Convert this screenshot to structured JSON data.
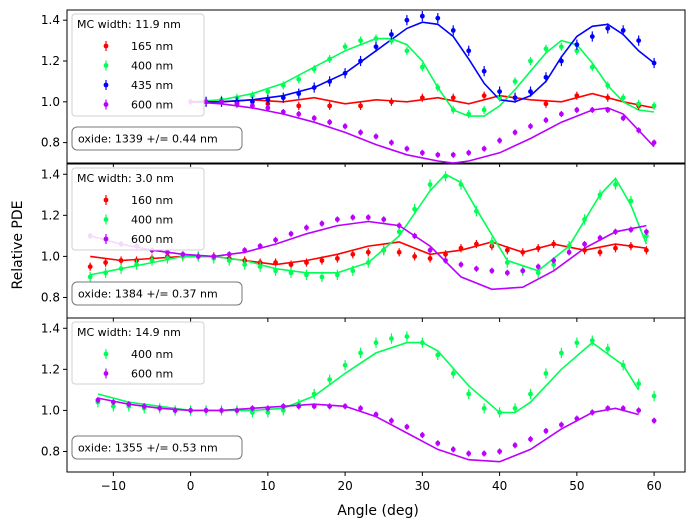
{
  "figure": {
    "ylabel": "Relative PDE",
    "xlabel": "Angle (deg)",
    "x_ticks": [
      -10,
      0,
      10,
      20,
      30,
      40,
      50,
      60
    ],
    "y_ticks": [
      0.8,
      1.0,
      1.2,
      1.4
    ]
  },
  "chart_data": [
    {
      "type": "scatter",
      "title": "",
      "xlim": [
        -16,
        64
      ],
      "ylim": [
        0.7,
        1.45
      ],
      "legend_title": "MC width:  11.9 nm",
      "annotation": "oxide: 1339 +/= 0.44 nm",
      "series": [
        {
          "name": "165 nm",
          "color": "#ff0000",
          "x": [
            2,
            6,
            10,
            14,
            18,
            22,
            26,
            30,
            34,
            38,
            42,
            46,
            50,
            54,
            58
          ],
          "y": [
            1.0,
            0.99,
            0.99,
            0.98,
            0.98,
            0.98,
            1.0,
            1.02,
            1.02,
            1.03,
            1.02,
            0.99,
            1.03,
            1.02,
            0.98
          ],
          "err": 0.02,
          "model_x": [
            0,
            4,
            8,
            12,
            16,
            20,
            24,
            28,
            32,
            36,
            40,
            44,
            48,
            52,
            56,
            60
          ],
          "model_y": [
            1.0,
            1.0,
            1.01,
            1.0,
            1.02,
            0.99,
            1.01,
            1.0,
            1.02,
            0.99,
            1.03,
            1.01,
            1.0,
            1.04,
            1.0,
            0.97
          ]
        },
        {
          "name": "400 nm",
          "color": "#00ff55",
          "x": [
            2,
            4,
            6,
            8,
            10,
            12,
            14,
            16,
            18,
            20,
            22,
            24,
            26,
            28,
            30,
            32,
            34,
            36,
            38,
            40,
            42,
            44,
            46,
            48,
            50,
            52,
            54,
            56,
            58,
            60
          ],
          "y": [
            1.0,
            1.01,
            1.02,
            1.03,
            1.05,
            1.08,
            1.11,
            1.16,
            1.21,
            1.27,
            1.3,
            1.31,
            1.3,
            1.25,
            1.17,
            1.07,
            0.96,
            0.94,
            0.96,
            1.02,
            1.1,
            1.2,
            1.26,
            1.27,
            1.25,
            1.17,
            1.08,
            1.02,
            0.99,
            0.98
          ],
          "err": 0.02,
          "model_x": [
            0,
            4,
            8,
            12,
            16,
            20,
            24,
            26,
            28,
            30,
            32,
            34,
            36,
            38,
            40,
            42,
            44,
            46,
            48,
            50,
            52,
            54,
            56,
            58,
            60
          ],
          "model_y": [
            1.0,
            1.01,
            1.04,
            1.09,
            1.17,
            1.25,
            1.31,
            1.31,
            1.28,
            1.2,
            1.07,
            0.96,
            0.93,
            0.93,
            0.98,
            1.06,
            1.15,
            1.24,
            1.3,
            1.28,
            1.19,
            1.08,
            1.0,
            0.96,
            0.95
          ]
        },
        {
          "name": "435 nm",
          "color": "#0000ff",
          "x": [
            2,
            4,
            6,
            8,
            10,
            12,
            14,
            16,
            18,
            20,
            22,
            24,
            26,
            28,
            30,
            32,
            34,
            36,
            38,
            40,
            42,
            44,
            46,
            48,
            50,
            52,
            54,
            56,
            58,
            60
          ],
          "y": [
            1.0,
            1.0,
            1.0,
            1.0,
            1.01,
            1.02,
            1.04,
            1.07,
            1.1,
            1.14,
            1.2,
            1.27,
            1.33,
            1.4,
            1.42,
            1.41,
            1.35,
            1.25,
            1.15,
            1.05,
            1.02,
            1.05,
            1.12,
            1.2,
            1.28,
            1.32,
            1.36,
            1.35,
            1.3,
            1.19
          ],
          "err": 0.025,
          "model_x": [
            0,
            4,
            8,
            12,
            16,
            20,
            24,
            28,
            30,
            32,
            34,
            36,
            38,
            40,
            42,
            44,
            46,
            48,
            50,
            52,
            54,
            56,
            58,
            60
          ],
          "model_y": [
            1.0,
            1.0,
            1.01,
            1.03,
            1.07,
            1.14,
            1.25,
            1.36,
            1.39,
            1.38,
            1.32,
            1.21,
            1.09,
            1.01,
            1.0,
            1.03,
            1.1,
            1.22,
            1.32,
            1.37,
            1.38,
            1.33,
            1.25,
            1.19
          ]
        },
        {
          "name": "600 nm",
          "color": "#bb00ff",
          "x": [
            0,
            2,
            4,
            6,
            8,
            10,
            12,
            14,
            16,
            18,
            20,
            22,
            24,
            26,
            28,
            30,
            32,
            34,
            36,
            38,
            40,
            42,
            44,
            46,
            48,
            50,
            52,
            54,
            56,
            58,
            60
          ],
          "y": [
            1.0,
            1.0,
            1.0,
            0.99,
            0.98,
            0.97,
            0.95,
            0.94,
            0.92,
            0.9,
            0.88,
            0.85,
            0.83,
            0.8,
            0.77,
            0.75,
            0.74,
            0.74,
            0.75,
            0.77,
            0.81,
            0.85,
            0.88,
            0.91,
            0.94,
            0.96,
            0.96,
            0.96,
            0.92,
            0.86,
            0.8
          ],
          "err": 0.015,
          "model_x": [
            0,
            4,
            8,
            12,
            16,
            20,
            24,
            28,
            32,
            34,
            36,
            40,
            44,
            48,
            52,
            54,
            56,
            60
          ],
          "model_y": [
            1.0,
            0.99,
            0.97,
            0.94,
            0.9,
            0.85,
            0.79,
            0.74,
            0.71,
            0.7,
            0.71,
            0.75,
            0.82,
            0.9,
            0.96,
            0.97,
            0.94,
            0.78
          ]
        }
      ]
    },
    {
      "type": "scatter",
      "title": "",
      "xlim": [
        -16,
        64
      ],
      "ylim": [
        0.7,
        1.45
      ],
      "legend_title": "MC width:  3.0 nm",
      "annotation": "oxide: 1384 +/= 0.37 nm",
      "series": [
        {
          "name": "160 nm",
          "color": "#ff0000",
          "x": [
            -13,
            -11,
            -9,
            -7,
            -5,
            -3,
            -1,
            1,
            3,
            5,
            7,
            9,
            11,
            13,
            15,
            17,
            19,
            21,
            23,
            25,
            27,
            29,
            31,
            33,
            35,
            37,
            39,
            41,
            43,
            45,
            47,
            49,
            51,
            53,
            55,
            57,
            59
          ],
          "y": [
            0.95,
            0.97,
            0.98,
            0.98,
            0.99,
            1.0,
            1.0,
            1.0,
            1.0,
            0.99,
            0.98,
            0.97,
            0.97,
            0.96,
            0.97,
            0.98,
            0.99,
            1.01,
            1.02,
            1.03,
            1.02,
            1.0,
            0.99,
            1.01,
            1.04,
            1.06,
            1.05,
            1.03,
            1.02,
            1.04,
            1.06,
            1.05,
            1.03,
            1.02,
            1.04,
            1.05,
            1.03
          ],
          "err": 0.02,
          "model_x": [
            -13,
            -9,
            -5,
            -1,
            3,
            7,
            11,
            15,
            19,
            23,
            27,
            31,
            35,
            39,
            43,
            47,
            51,
            55,
            59
          ],
          "model_y": [
            1.0,
            0.98,
            0.99,
            1.0,
            1.0,
            0.98,
            0.96,
            0.98,
            1.01,
            1.05,
            1.07,
            1.01,
            1.03,
            1.07,
            1.02,
            1.06,
            1.03,
            1.06,
            1.04
          ]
        },
        {
          "name": "400 nm",
          "color": "#00ff55",
          "x": [
            -13,
            -11,
            -9,
            -7,
            -5,
            -3,
            -1,
            1,
            3,
            5,
            7,
            9,
            11,
            13,
            15,
            17,
            19,
            21,
            23,
            25,
            27,
            29,
            31,
            33,
            35,
            37,
            39,
            41,
            43,
            45,
            47,
            49,
            51,
            53,
            55,
            57,
            59
          ],
          "y": [
            0.9,
            0.92,
            0.94,
            0.96,
            0.98,
            0.99,
            1.0,
            1.0,
            0.99,
            0.98,
            0.96,
            0.95,
            0.93,
            0.92,
            0.91,
            0.9,
            0.91,
            0.93,
            0.97,
            1.03,
            1.12,
            1.23,
            1.35,
            1.39,
            1.35,
            1.22,
            1.07,
            0.97,
            0.93,
            0.92,
            0.96,
            1.05,
            1.18,
            1.3,
            1.35,
            1.27,
            1.1
          ],
          "err": 0.025,
          "model_x": [
            -13,
            -9,
            -5,
            -1,
            3,
            7,
            11,
            15,
            19,
            23,
            27,
            31,
            33,
            35,
            37,
            41,
            45,
            49,
            53,
            55,
            57,
            59
          ],
          "model_y": [
            0.91,
            0.94,
            0.97,
            1.0,
            1.0,
            0.98,
            0.94,
            0.92,
            0.92,
            0.97,
            1.1,
            1.32,
            1.4,
            1.36,
            1.23,
            0.98,
            0.93,
            1.05,
            1.3,
            1.38,
            1.25,
            1.06
          ]
        },
        {
          "name": "600 nm",
          "color": "#bb00ff",
          "x": [
            -13,
            -11,
            -9,
            -7,
            -5,
            -3,
            -1,
            1,
            3,
            5,
            7,
            9,
            11,
            13,
            15,
            17,
            19,
            21,
            23,
            25,
            27,
            29,
            31,
            33,
            35,
            37,
            39,
            41,
            43,
            45,
            47,
            49,
            51,
            53,
            55,
            57,
            59
          ],
          "y": [
            1.1,
            1.08,
            1.06,
            1.05,
            1.03,
            1.02,
            1.01,
            1.0,
            1.0,
            1.01,
            1.03,
            1.05,
            1.08,
            1.11,
            1.14,
            1.16,
            1.18,
            1.19,
            1.19,
            1.18,
            1.15,
            1.1,
            1.03,
            0.98,
            0.96,
            0.94,
            0.93,
            0.92,
            0.93,
            0.95,
            0.98,
            1.02,
            1.06,
            1.09,
            1.12,
            1.13,
            1.12
          ],
          "err": 0.015,
          "model_x": [
            -13,
            -9,
            -5,
            -1,
            3,
            7,
            11,
            15,
            19,
            23,
            27,
            31,
            35,
            39,
            43,
            47,
            51,
            55,
            59
          ],
          "model_y": [
            1.1,
            1.06,
            1.03,
            1.01,
            1.0,
            1.02,
            1.06,
            1.11,
            1.15,
            1.17,
            1.15,
            1.05,
            0.9,
            0.84,
            0.85,
            0.93,
            1.04,
            1.12,
            1.15
          ]
        }
      ]
    },
    {
      "type": "scatter",
      "title": "",
      "xlim": [
        -16,
        64
      ],
      "ylim": [
        0.7,
        1.45
      ],
      "legend_title": "MC width:  14.9 nm",
      "annotation": "oxide: 1355 +/= 0.53 nm",
      "series": [
        {
          "name": "400 nm",
          "color": "#00ff55",
          "x": [
            -12,
            -10,
            -8,
            -6,
            -4,
            -2,
            0,
            2,
            4,
            6,
            8,
            10,
            12,
            14,
            16,
            18,
            20,
            22,
            24,
            26,
            28,
            30,
            32,
            34,
            36,
            38,
            40,
            42,
            44,
            46,
            48,
            50,
            52,
            54,
            56,
            58,
            60
          ],
          "y": [
            1.04,
            1.02,
            1.02,
            1.01,
            1.01,
            1.0,
            1.0,
            1.0,
            1.0,
            1.0,
            0.99,
            0.99,
            1.0,
            1.03,
            1.08,
            1.15,
            1.22,
            1.28,
            1.33,
            1.35,
            1.36,
            1.33,
            1.27,
            1.18,
            1.08,
            1.01,
            0.99,
            1.01,
            1.08,
            1.18,
            1.28,
            1.33,
            1.34,
            1.3,
            1.22,
            1.13,
            1.07
          ],
          "err": 0.025,
          "model_x": [
            -12,
            -8,
            -4,
            0,
            4,
            8,
            12,
            16,
            20,
            24,
            28,
            30,
            32,
            36,
            40,
            42,
            44,
            48,
            52,
            56,
            58
          ],
          "model_y": [
            1.08,
            1.04,
            1.02,
            1.0,
            1.0,
            1.0,
            1.01,
            1.07,
            1.18,
            1.28,
            1.33,
            1.33,
            1.29,
            1.12,
            0.99,
            0.99,
            1.04,
            1.2,
            1.33,
            1.22,
            1.1
          ]
        },
        {
          "name": "600 nm",
          "color": "#bb00ff",
          "x": [
            -12,
            -10,
            -8,
            -6,
            -4,
            -2,
            0,
            2,
            4,
            6,
            8,
            10,
            12,
            14,
            16,
            18,
            20,
            22,
            24,
            26,
            28,
            30,
            32,
            34,
            36,
            38,
            40,
            42,
            44,
            46,
            48,
            50,
            52,
            54,
            56,
            58,
            60
          ],
          "y": [
            1.05,
            1.04,
            1.03,
            1.02,
            1.01,
            1.0,
            1.0,
            1.0,
            1.0,
            1.0,
            1.01,
            1.01,
            1.02,
            1.02,
            1.02,
            1.02,
            1.02,
            1.01,
            0.98,
            0.95,
            0.92,
            0.88,
            0.84,
            0.81,
            0.79,
            0.79,
            0.8,
            0.83,
            0.86,
            0.9,
            0.93,
            0.96,
            0.99,
            1.01,
            1.01,
            1.0,
            0.95
          ],
          "err": 0.015,
          "model_x": [
            -12,
            -8,
            -4,
            0,
            4,
            8,
            12,
            16,
            20,
            24,
            28,
            32,
            36,
            40,
            44,
            48,
            52,
            55,
            58
          ],
          "model_y": [
            1.06,
            1.03,
            1.01,
            1.0,
            1.0,
            1.01,
            1.02,
            1.03,
            1.02,
            0.97,
            0.89,
            0.81,
            0.76,
            0.75,
            0.81,
            0.91,
            0.99,
            1.01,
            0.98
          ]
        }
      ]
    }
  ]
}
